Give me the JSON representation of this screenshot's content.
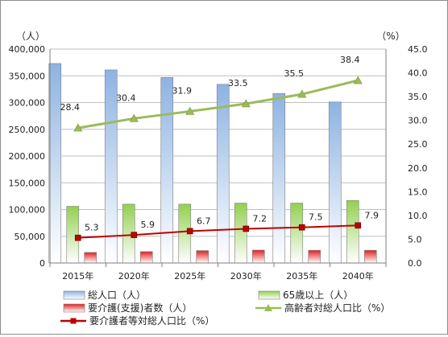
{
  "chart_data": {
    "type": "bar+line",
    "categories": [
      "2015年",
      "2020年",
      "2025年",
      "2030年",
      "2035年",
      "2040年"
    ],
    "y_left": {
      "unit": "（人）",
      "range": [
        0,
        400000
      ],
      "ticks": [
        "0",
        "50,000",
        "100,000",
        "150,000",
        "200,000",
        "250,000",
        "300,000",
        "350,000",
        "400,000"
      ]
    },
    "y_right": {
      "unit": "（%）",
      "range": [
        0,
        45
      ],
      "ticks": [
        "0.0",
        "5.0",
        "10.0",
        "15.0",
        "20.0",
        "25.0",
        "30.0",
        "35.0",
        "40.0",
        "45.0"
      ]
    },
    "grid": true,
    "legend_position": "bottom",
    "bar_series": [
      {
        "name": "総人口（人）",
        "values": [
          373000,
          361000,
          347000,
          334000,
          317000,
          301000
        ],
        "color": "#8db3e2"
      },
      {
        "name": "65歳以上（人）",
        "values": [
          106000,
          110000,
          110000,
          112000,
          112000,
          117000
        ],
        "color": "#92d050"
      },
      {
        "name": "要介護(支援)者数（人）",
        "values": [
          19800,
          21300,
          23200,
          24100,
          23800,
          23800
        ],
        "color": "#e02020"
      }
    ],
    "line_series": [
      {
        "name": "高齢者対総人口比（%）",
        "values": [
          28.4,
          30.4,
          31.9,
          33.5,
          35.5,
          38.4
        ],
        "labels": [
          "28.4",
          "30.4",
          "31.9",
          "33.5",
          "35.5",
          "38.4"
        ],
        "color": "#9bbb59",
        "marker": "triangle"
      },
      {
        "name": "要介護者等対総人口比（%）",
        "values": [
          5.3,
          5.9,
          6.7,
          7.2,
          7.5,
          7.9
        ],
        "labels": [
          "5.3",
          "5.9",
          "6.7",
          "7.2",
          "7.5",
          "7.9"
        ],
        "color": "#c00000",
        "marker": "square"
      }
    ]
  }
}
